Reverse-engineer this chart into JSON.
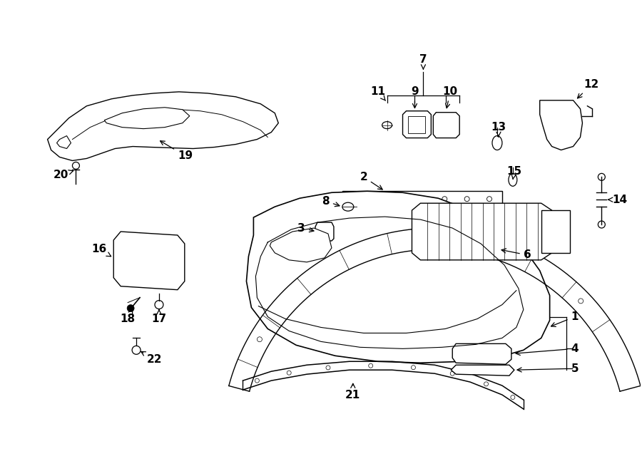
{
  "bg_color": "#ffffff",
  "line_color": "#000000",
  "fig_width": 9.0,
  "fig_height": 6.61,
  "dpi": 100,
  "font_size": 11
}
